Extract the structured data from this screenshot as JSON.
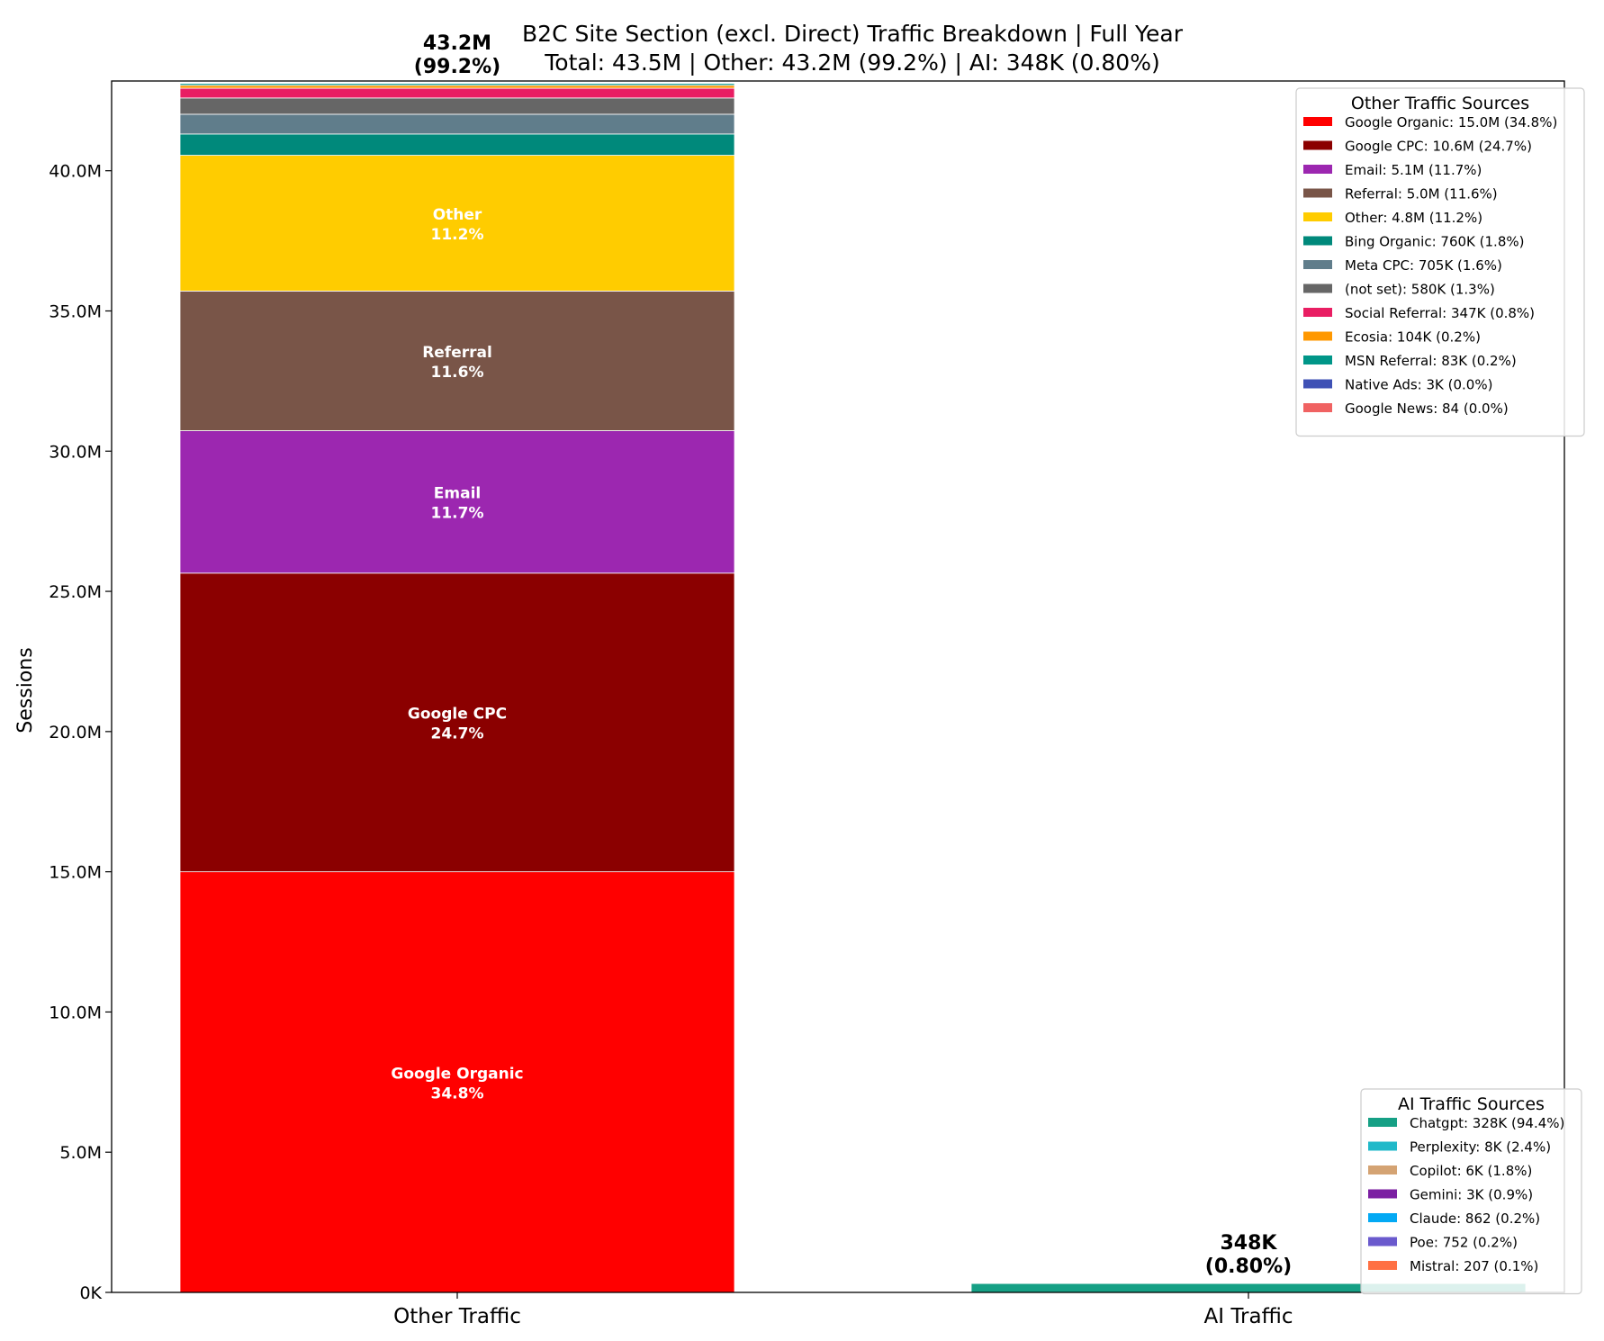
{
  "chart_data": {
    "type": "bar",
    "stacked": true,
    "title": "B2C Site Section (excl. Direct) Traffic Breakdown | Full Year",
    "subtitle": "Total: 43.5M | Other: 43.2M (99.2%) | AI: 348K (0.80%)",
    "xlabel": "",
    "ylabel": "Sessions",
    "ylim": [
      0,
      43200000
    ],
    "y_ticks": [
      {
        "value": 0,
        "label": "0K"
      },
      {
        "value": 5000000,
        "label": "5.0M"
      },
      {
        "value": 10000000,
        "label": "10.0M"
      },
      {
        "value": 15000000,
        "label": "15.0M"
      },
      {
        "value": 20000000,
        "label": "20.0M"
      },
      {
        "value": 25000000,
        "label": "25.0M"
      },
      {
        "value": 30000000,
        "label": "30.0M"
      },
      {
        "value": 35000000,
        "label": "35.0M"
      },
      {
        "value": 40000000,
        "label": "40.0M"
      }
    ],
    "categories": [
      "Other Traffic",
      "AI Traffic"
    ],
    "bars": [
      {
        "category": "Other Traffic",
        "total_label": "43.2M",
        "total_pct": "(99.2%)",
        "segments": [
          {
            "name": "Google Organic",
            "value": 15000000,
            "pct": "34.8%",
            "color": "#ff0000",
            "inner_label": true
          },
          {
            "name": "Google CPC",
            "value": 10650000,
            "pct": "24.7%",
            "color": "#8b0000",
            "inner_label": true
          },
          {
            "name": "Email",
            "value": 5080000,
            "pct": "11.7%",
            "color": "#9c27b0",
            "inner_label": true
          },
          {
            "name": "Referral",
            "value": 4980000,
            "pct": "11.6%",
            "color": "#795548",
            "inner_label": true
          },
          {
            "name": "Other",
            "value": 4840000,
            "pct": "11.2%",
            "color": "#ffcc00",
            "inner_label": true
          },
          {
            "name": "Bing Organic",
            "value": 760000,
            "pct": "1.8%",
            "color": "#00897b",
            "inner_label": false
          },
          {
            "name": "Meta CPC",
            "value": 705000,
            "pct": "1.6%",
            "color": "#607d8b",
            "inner_label": false
          },
          {
            "name": "(not set)",
            "value": 580000,
            "pct": "1.3%",
            "color": "#666666",
            "inner_label": false
          },
          {
            "name": "Social Referral",
            "value": 347000,
            "pct": "0.8%",
            "color": "#e91e63",
            "inner_label": false
          },
          {
            "name": "Ecosia",
            "value": 104000,
            "pct": "0.2%",
            "color": "#ff9800",
            "inner_label": false
          },
          {
            "name": "MSN Referral",
            "value": 83000,
            "pct": "0.2%",
            "color": "#009688",
            "inner_label": false
          },
          {
            "name": "Native Ads",
            "value": 3000,
            "pct": "0.0%",
            "color": "#3f51b5",
            "inner_label": false
          },
          {
            "name": "Google News",
            "value": 84,
            "pct": "0.0%",
            "color": "#f06262",
            "inner_label": false
          }
        ]
      },
      {
        "category": "AI Traffic",
        "total_label": "348K",
        "total_pct": "(0.80%)",
        "segments": [
          {
            "name": "Chatgpt",
            "value": 328000,
            "pct": "94.4%",
            "color": "#16a085"
          },
          {
            "name": "Perplexity",
            "value": 8000,
            "pct": "2.4%",
            "color": "#20b9c9"
          },
          {
            "name": "Copilot",
            "value": 6000,
            "pct": "1.8%",
            "color": "#d4a373"
          },
          {
            "name": "Gemini",
            "value": 3000,
            "pct": "0.9%",
            "color": "#7b1fa2"
          },
          {
            "name": "Claude",
            "value": 862,
            "pct": "0.2%",
            "color": "#03a9f4"
          },
          {
            "name": "Poe",
            "value": 752,
            "pct": "0.2%",
            "color": "#6a5acd"
          },
          {
            "name": "Mistral",
            "value": 207,
            "pct": "0.1%",
            "color": "#ff7043"
          }
        ]
      }
    ],
    "legends": [
      {
        "title": "Other Traffic Sources",
        "placement": "top-right",
        "entries": [
          {
            "label": "Google Organic: 15.0M (34.8%)",
            "color": "#ff0000"
          },
          {
            "label": "Google CPC: 10.6M (24.7%)",
            "color": "#8b0000"
          },
          {
            "label": "Email: 5.1M (11.7%)",
            "color": "#9c27b0"
          },
          {
            "label": "Referral: 5.0M (11.6%)",
            "color": "#795548"
          },
          {
            "label": "Other: 4.8M (11.2%)",
            "color": "#ffcc00"
          },
          {
            "label": "Bing Organic: 760K (1.8%)",
            "color": "#00897b"
          },
          {
            "label": "Meta CPC: 705K (1.6%)",
            "color": "#607d8b"
          },
          {
            "label": "(not set): 580K (1.3%)",
            "color": "#666666"
          },
          {
            "label": "Social Referral: 347K (0.8%)",
            "color": "#e91e63"
          },
          {
            "label": "Ecosia: 104K (0.2%)",
            "color": "#ff9800"
          },
          {
            "label": "MSN Referral: 83K (0.2%)",
            "color": "#009688"
          },
          {
            "label": "Native Ads: 3K (0.0%)",
            "color": "#3f51b5"
          },
          {
            "label": "Google News: 84 (0.0%)",
            "color": "#f06262"
          }
        ]
      },
      {
        "title": "AI Traffic Sources",
        "placement": "bottom-right",
        "entries": [
          {
            "label": "Chatgpt: 328K (94.4%)",
            "color": "#16a085"
          },
          {
            "label": "Perplexity: 8K (2.4%)",
            "color": "#20b9c9"
          },
          {
            "label": "Copilot: 6K (1.8%)",
            "color": "#d4a373"
          },
          {
            "label": "Gemini: 3K (0.9%)",
            "color": "#7b1fa2"
          },
          {
            "label": "Claude: 862 (0.2%)",
            "color": "#03a9f4"
          },
          {
            "label": "Poe: 752 (0.2%)",
            "color": "#6a5acd"
          },
          {
            "label": "Mistral: 207 (0.1%)",
            "color": "#ff7043"
          }
        ]
      }
    ]
  }
}
